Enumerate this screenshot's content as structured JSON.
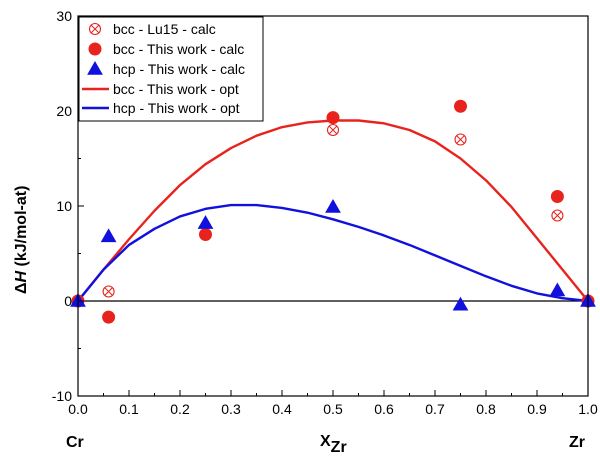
{
  "chart_data": {
    "type": "scatter",
    "title": "",
    "xlabel": {
      "main": "X",
      "sub": "Zr"
    },
    "ylabel": {
      "prefix": "Δ",
      "italic": "H",
      "suffix": " (kJ/mol-at)"
    },
    "xlim": [
      0,
      1
    ],
    "ylim": [
      -10,
      30
    ],
    "x_ticks": [
      0,
      0.1,
      0.2,
      0.3,
      0.4,
      0.5,
      0.6,
      0.7,
      0.8,
      0.9,
      1.0
    ],
    "x_tick_labels": [
      "0.0",
      "0.1",
      "0.2",
      "0.3",
      "0.4",
      "0.5",
      "0.6",
      "0.7",
      "0.8",
      "0.9",
      "1.0"
    ],
    "y_ticks": [
      -10,
      0,
      10,
      20,
      30
    ],
    "y_tick_labels": [
      "-10",
      "0",
      "10",
      "20",
      "30"
    ],
    "end_labels": {
      "left": "Cr",
      "right": "Zr"
    },
    "zero_line": true,
    "legend_position": "top-left",
    "series": [
      {
        "name": "bcc - Lu15 - calc",
        "kind": "points",
        "marker": "crossed-circle",
        "color": "#e8231e",
        "points": [
          [
            0,
            0
          ],
          [
            0.06,
            1
          ],
          [
            0.5,
            18
          ],
          [
            0.75,
            17
          ],
          [
            0.94,
            9
          ],
          [
            1,
            0
          ]
        ]
      },
      {
        "name": "bcc - This work - calc",
        "kind": "points",
        "marker": "filled-circle",
        "color": "#e8231e",
        "points": [
          [
            0,
            0
          ],
          [
            0.06,
            -1.7
          ],
          [
            0.25,
            7
          ],
          [
            0.5,
            19.3
          ],
          [
            0.75,
            20.5
          ],
          [
            0.94,
            11
          ],
          [
            1,
            0
          ]
        ]
      },
      {
        "name": "hcp - This work - calc",
        "kind": "points",
        "marker": "filled-triangle",
        "color": "#1111dd",
        "points": [
          [
            0,
            0
          ],
          [
            0.06,
            6.8
          ],
          [
            0.25,
            8.2
          ],
          [
            0.5,
            9.9
          ],
          [
            0.75,
            -0.4
          ],
          [
            0.94,
            1.1
          ],
          [
            1,
            0
          ]
        ]
      },
      {
        "name": "bcc - This work - opt",
        "kind": "line",
        "color": "#e8231e",
        "points": [
          [
            0,
            0
          ],
          [
            0.05,
            3.3
          ],
          [
            0.1,
            6.5
          ],
          [
            0.15,
            9.5
          ],
          [
            0.2,
            12.2
          ],
          [
            0.25,
            14.4
          ],
          [
            0.3,
            16.1
          ],
          [
            0.35,
            17.4
          ],
          [
            0.4,
            18.3
          ],
          [
            0.45,
            18.8
          ],
          [
            0.5,
            19.0
          ],
          [
            0.55,
            19.0
          ],
          [
            0.6,
            18.7
          ],
          [
            0.65,
            18.0
          ],
          [
            0.7,
            16.8
          ],
          [
            0.75,
            15.0
          ],
          [
            0.8,
            12.7
          ],
          [
            0.85,
            9.9
          ],
          [
            0.9,
            6.6
          ],
          [
            0.95,
            3.3
          ],
          [
            1,
            0
          ]
        ]
      },
      {
        "name": "hcp - This work - opt",
        "kind": "line",
        "color": "#1111dd",
        "points": [
          [
            0,
            0
          ],
          [
            0.05,
            3.3
          ],
          [
            0.1,
            5.9
          ],
          [
            0.15,
            7.6
          ],
          [
            0.2,
            8.9
          ],
          [
            0.25,
            9.7
          ],
          [
            0.3,
            10.1
          ],
          [
            0.35,
            10.1
          ],
          [
            0.4,
            9.8
          ],
          [
            0.45,
            9.3
          ],
          [
            0.5,
            8.6
          ],
          [
            0.55,
            7.8
          ],
          [
            0.6,
            6.9
          ],
          [
            0.65,
            5.9
          ],
          [
            0.7,
            4.8
          ],
          [
            0.75,
            3.7
          ],
          [
            0.8,
            2.6
          ],
          [
            0.85,
            1.6
          ],
          [
            0.9,
            0.8
          ],
          [
            0.95,
            0.3
          ],
          [
            1,
            0
          ]
        ]
      }
    ]
  }
}
